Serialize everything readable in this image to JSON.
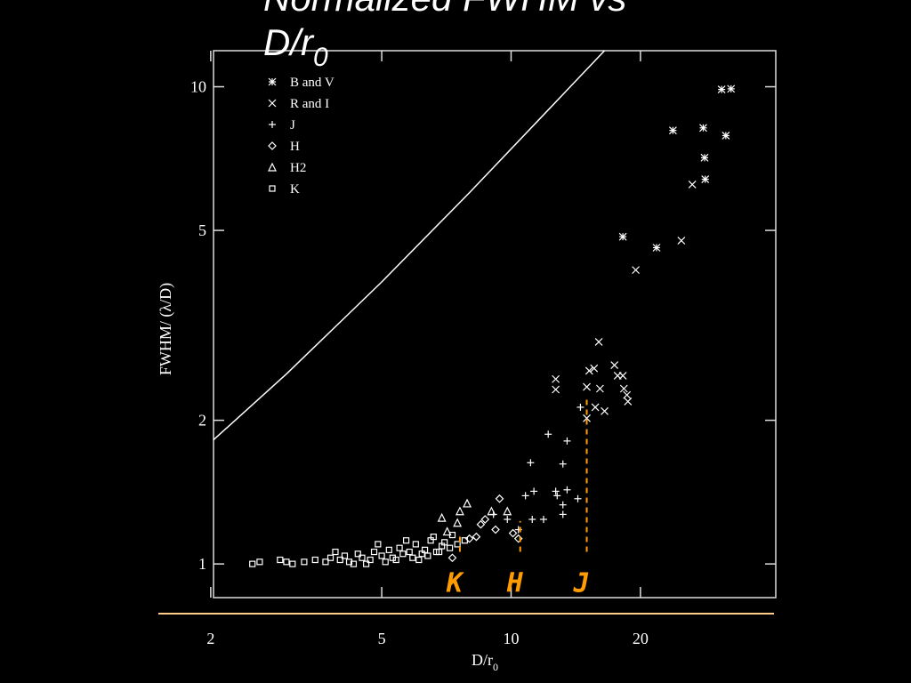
{
  "chart_data": {
    "type": "scatter",
    "title_lines": [
      "Normalized FWHM vs",
      "D/r"
    ],
    "title_subscript": "0",
    "x_label": "D/r",
    "x_label_subscript": "0",
    "y_label": "FWHM/ (λ/D)",
    "x_log": true,
    "y_log": true,
    "xlim": [
      2.03,
      41.3
    ],
    "ylim": [
      0.85,
      11.9
    ],
    "xticks": [
      2,
      5,
      10,
      20
    ],
    "yticks": [
      1,
      2,
      5,
      10
    ],
    "curve": {
      "x": [
        2.03,
        3,
        5,
        8,
        12,
        16.5
      ],
      "values": [
        1.82,
        2.5,
        3.9,
        6.0,
        8.8,
        11.9
      ],
      "color": "#ffffff"
    },
    "series": [
      {
        "name": "B and V",
        "marker": "asterisk",
        "color": "#ffffff",
        "x": [
          30.9,
          32.5,
          23.8,
          28.0,
          31.6,
          28.2,
          28.3,
          18.2,
          21.8
        ],
        "values": [
          9.87,
          9.9,
          8.1,
          8.2,
          7.9,
          7.1,
          6.4,
          4.85,
          4.6
        ]
      },
      {
        "name": "R and I",
        "marker": "cross",
        "color": "#ffffff",
        "x": [
          26.4,
          24.9,
          19.5,
          16.0,
          12.7,
          12.7,
          15.0,
          15.2,
          15.6,
          17.4,
          17.7,
          18.2,
          16.1,
          18.3,
          18.6,
          18.7,
          16.5,
          15.7,
          15.0
        ],
        "values": [
          6.24,
          4.76,
          4.13,
          2.92,
          2.44,
          2.32,
          2.35,
          2.54,
          2.57,
          2.61,
          2.48,
          2.48,
          2.33,
          2.33,
          2.26,
          2.19,
          2.09,
          2.13,
          2.02
        ]
      },
      {
        "name": "J",
        "marker": "plus",
        "color": "#ffffff",
        "x": [
          14.5,
          12.2,
          13.5,
          11.1,
          13.2,
          10.8,
          11.3,
          12.7,
          13.5,
          14.3,
          12.8,
          13.2,
          11.2,
          11.9,
          13.2,
          10.4,
          9.8,
          9.1
        ],
        "values": [
          2.13,
          1.87,
          1.81,
          1.63,
          1.62,
          1.39,
          1.42,
          1.42,
          1.43,
          1.37,
          1.39,
          1.33,
          1.24,
          1.24,
          1.27,
          1.18,
          1.24,
          1.27
        ]
      },
      {
        "name": "H",
        "marker": "diamond",
        "color": "#ffffff",
        "x": [
          9.4,
          8.7,
          8.5,
          9.2,
          10.1,
          10.4,
          7.3,
          8.0,
          8.3
        ],
        "values": [
          1.37,
          1.24,
          1.21,
          1.18,
          1.16,
          1.13,
          1.03,
          1.13,
          1.14
        ]
      },
      {
        "name": "H2",
        "marker": "triangle",
        "color": "#ffffff",
        "x": [
          7.9,
          7.6,
          7.5,
          6.9,
          9.0,
          9.8,
          7.1
        ],
        "values": [
          1.34,
          1.29,
          1.22,
          1.25,
          1.29,
          1.29,
          1.17
        ]
      },
      {
        "name": "K",
        "marker": "square",
        "color": "#ffffff",
        "x": [
          2.5,
          2.6,
          2.9,
          3.0,
          3.1,
          3.3,
          3.5,
          3.7,
          3.8,
          4.0,
          4.1,
          4.2,
          4.4,
          4.5,
          4.7,
          4.8,
          5.0,
          5.2,
          5.3,
          5.5,
          5.6,
          5.8,
          6.0,
          6.2,
          6.3,
          6.5,
          6.7,
          6.9,
          7.0,
          7.2,
          7.5,
          7.8,
          4.3,
          4.6,
          5.1,
          5.4,
          5.9,
          6.1,
          6.4,
          6.8,
          3.9,
          4.9,
          5.7,
          6.6,
          7.3
        ],
        "values": [
          1.0,
          1.01,
          1.02,
          1.01,
          1.0,
          1.01,
          1.02,
          1.01,
          1.03,
          1.02,
          1.04,
          1.01,
          1.05,
          1.03,
          1.02,
          1.06,
          1.04,
          1.07,
          1.03,
          1.08,
          1.05,
          1.06,
          1.1,
          1.05,
          1.07,
          1.12,
          1.06,
          1.09,
          1.11,
          1.08,
          1.1,
          1.12,
          1.0,
          1.0,
          1.01,
          1.02,
          1.03,
          1.02,
          1.04,
          1.06,
          1.06,
          1.1,
          1.12,
          1.14,
          1.15
        ]
      }
    ],
    "annotations": [
      {
        "text": "K",
        "x": 7.6,
        "y_from": 1.06,
        "y_to": 1.16,
        "color": "#ff9c00"
      },
      {
        "text": "H",
        "x": 10.5,
        "y_from": 1.06,
        "y_to": 1.23,
        "color": "#ff9c00"
      },
      {
        "text": "J",
        "x": 15,
        "y_from": 1.06,
        "y_to": 2.25,
        "color": "#ff9c00"
      }
    ]
  }
}
